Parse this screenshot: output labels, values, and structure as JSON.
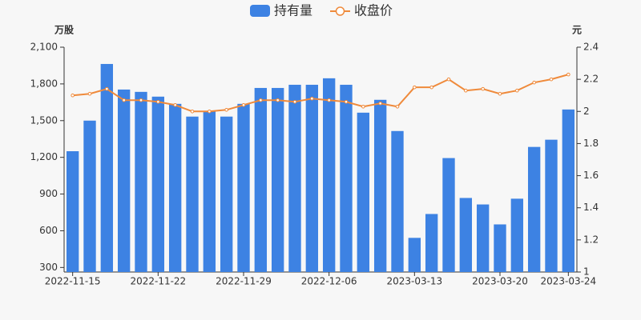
{
  "chart_data": {
    "type": "bar-line",
    "categories": [
      "2022-11-15",
      null,
      null,
      null,
      null,
      "2022-11-22",
      null,
      null,
      null,
      null,
      "2022-11-29",
      null,
      null,
      null,
      null,
      "2022-12-06",
      null,
      null,
      null,
      null,
      "2023-03-13",
      null,
      null,
      null,
      null,
      "2023-03-20",
      null,
      null,
      null,
      "2023-03-24"
    ],
    "series": [
      {
        "name": "持有量",
        "color": "#3d82e3",
        "values": [
          1250,
          1500,
          1963,
          1754,
          1735,
          1696,
          1637,
          1533,
          1578,
          1533,
          1637,
          1767,
          1767,
          1793,
          1793,
          1846,
          1793,
          1565,
          1670,
          1415,
          542,
          737,
          1194,
          868,
          815,
          652,
          862,
          1285,
          1344,
          1591
        ]
      },
      {
        "name": "收盘价",
        "color": "#ef8a3b",
        "axis": "y2",
        "values": [
          2.1,
          2.11,
          2.14,
          2.07,
          2.07,
          2.06,
          2.04,
          2.0,
          2.0,
          2.01,
          2.04,
          2.07,
          2.07,
          2.06,
          2.08,
          2.07,
          2.06,
          2.03,
          2.05,
          2.03,
          2.15,
          2.15,
          2.2,
          2.13,
          2.14,
          2.11,
          2.13,
          2.18,
          2.2,
          2.23
        ]
      }
    ],
    "ylabel": "万股",
    "y2label": "元",
    "ylim": [
      263,
      2100
    ],
    "yticks": [
      300,
      600,
      900,
      {
        "value": 1200,
        "label": "1,200"
      },
      {
        "value": 1500,
        "label": "1,500"
      },
      {
        "value": 1800,
        "label": "1,800"
      },
      {
        "value": 2100,
        "label": "2,100"
      }
    ],
    "y2lim": [
      1,
      2.4
    ],
    "y2ticks": [
      1,
      1.2,
      1.4,
      1.6,
      1.8,
      2,
      2.2,
      2.4
    ]
  }
}
